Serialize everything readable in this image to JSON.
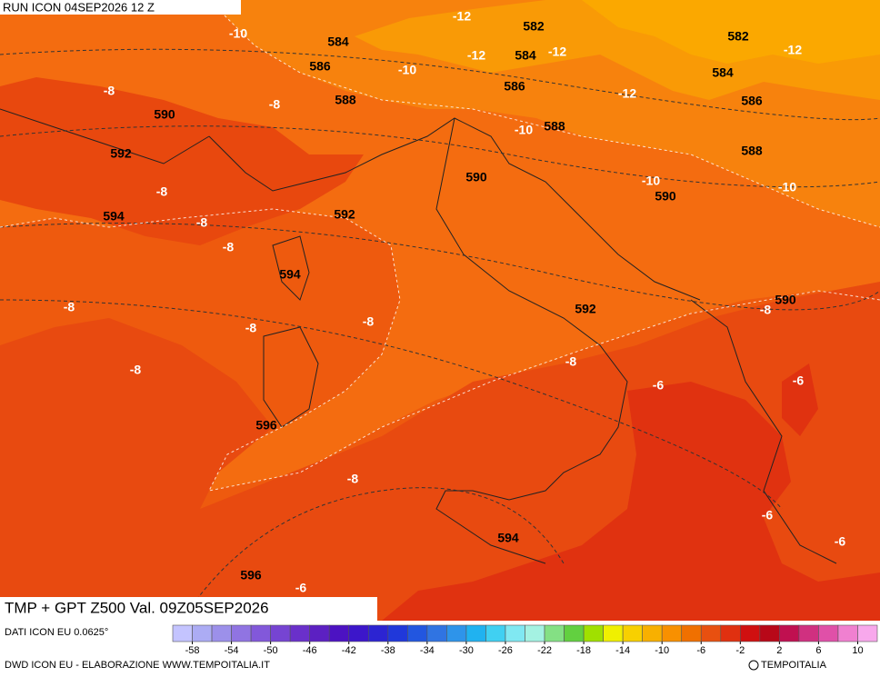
{
  "header": {
    "title": "RUN ICON 04SEP2026 12 Z"
  },
  "map": {
    "caption": "TMP + GPT Z500 Val. 09Z05SEP2026",
    "contour_labels": [
      -12,
      582,
      -10,
      584,
      582,
      -12,
      -12,
      584,
      -12,
      586,
      -10,
      584,
      586,
      -12,
      -8,
      588,
      -8,
      590,
      586,
      -10,
      588,
      592,
      588,
      590,
      -10,
      -8,
      590,
      -10,
      594,
      592,
      -8,
      -8,
      594,
      590,
      -8,
      592,
      -8,
      -8,
      -8,
      -8,
      -8,
      -6,
      -6,
      596,
      -8,
      -6,
      594,
      -6,
      596,
      -6
    ]
  },
  "colorbar": {
    "lim": [
      -60,
      12
    ],
    "ticks": [
      -58,
      -54,
      -50,
      -46,
      -42,
      -38,
      -34,
      -30,
      -26,
      -22,
      -18,
      -14,
      -10,
      -6,
      -2,
      2,
      6,
      10
    ],
    "colors": [
      "#c4c4ff",
      "#acacf4",
      "#9c90ea",
      "#9074e2",
      "#8258da",
      "#7644d2",
      "#6a30ca",
      "#5c20c2",
      "#4c12c2",
      "#3c16ca",
      "#2c24d2",
      "#2038da",
      "#2256e0",
      "#3074e2",
      "#2e94ea",
      "#20b2f0",
      "#40d0f2",
      "#80e8f2",
      "#a4f2e2",
      "#84e084",
      "#62d040",
      "#a0e000",
      "#f0f000",
      "#f8d000",
      "#f8b000",
      "#f89000",
      "#f07000",
      "#e85010",
      "#e03010",
      "#d01010",
      "#b80818",
      "#c01050",
      "#d03080",
      "#e050a8",
      "#f080d0",
      "#f8a8ec"
    ]
  },
  "footer": {
    "source": "DATI ICON EU 0.0625°",
    "credit": "DWD ICON EU - ELABORAZIONE WWW.TEMPOITALIA.IT",
    "copyright": "TEMPOITALIA"
  }
}
